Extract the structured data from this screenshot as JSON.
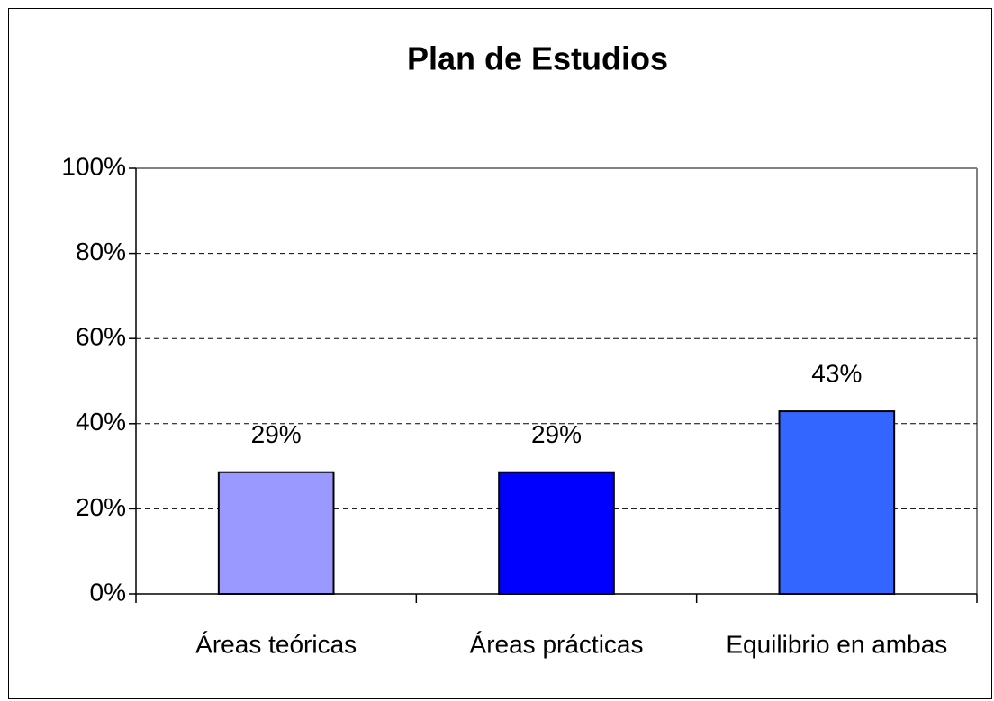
{
  "chart_data": {
    "type": "bar",
    "title": "Plan de Estudios",
    "categories": [
      "Áreas teóricas",
      "Áreas prácticas",
      "Equilibrio en ambas"
    ],
    "values": [
      28.6,
      28.6,
      42.9
    ],
    "value_labels": [
      "29%",
      "29%",
      "43%"
    ],
    "colors": [
      "#9999ff",
      "#0000ff",
      "#3366ff"
    ],
    "ylim": [
      0,
      100
    ],
    "yticks": [
      {
        "value": 0,
        "label": "0%"
      },
      {
        "value": 20,
        "label": "20%"
      },
      {
        "value": 40,
        "label": "40%"
      },
      {
        "value": 60,
        "label": "60%"
      },
      {
        "value": 80,
        "label": "80%"
      },
      {
        "value": 100,
        "label": "100%"
      }
    ],
    "grid": true
  }
}
